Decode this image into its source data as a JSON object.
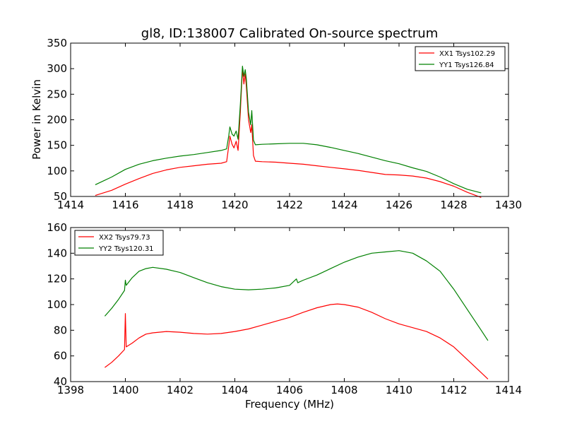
{
  "chart_data": [
    {
      "type": "line",
      "title": "gl8, ID:138007 Calibrated On-source spectrum",
      "xlabel": "",
      "ylabel": "Power in Kelvin",
      "xlim": [
        1414,
        1430
      ],
      "ylim": [
        50,
        350
      ],
      "xticks": [
        1414,
        1416,
        1418,
        1420,
        1422,
        1424,
        1426,
        1428,
        1430
      ],
      "yticks": [
        50,
        100,
        150,
        200,
        250,
        300,
        350
      ],
      "legend_position": "top-right",
      "series": [
        {
          "name": "XX1 Tsys102.29",
          "color": "#ff0000",
          "points": [
            [
              1414.9,
              52
            ],
            [
              1415.5,
              62
            ],
            [
              1416.0,
              74
            ],
            [
              1416.5,
              85
            ],
            [
              1417.0,
              95
            ],
            [
              1417.5,
              102
            ],
            [
              1418.0,
              107
            ],
            [
              1418.5,
              110
            ],
            [
              1419.0,
              113
            ],
            [
              1419.5,
              115
            ],
            [
              1419.7,
              118
            ],
            [
              1419.78,
              150
            ],
            [
              1419.82,
              168
            ],
            [
              1419.9,
              152
            ],
            [
              1419.97,
              145
            ],
            [
              1420.05,
              158
            ],
            [
              1420.12,
              140
            ],
            [
              1420.2,
              215
            ],
            [
              1420.28,
              300
            ],
            [
              1420.33,
              270
            ],
            [
              1420.38,
              290
            ],
            [
              1420.42,
              265
            ],
            [
              1420.5,
              200
            ],
            [
              1420.58,
              175
            ],
            [
              1420.62,
              190
            ],
            [
              1420.68,
              130
            ],
            [
              1420.75,
              119
            ],
            [
              1421.0,
              118
            ],
            [
              1421.5,
              117
            ],
            [
              1422.0,
              115
            ],
            [
              1422.5,
              113
            ],
            [
              1423.0,
              110
            ],
            [
              1423.5,
              107
            ],
            [
              1424.0,
              104
            ],
            [
              1424.5,
              101
            ],
            [
              1425.0,
              97
            ],
            [
              1425.5,
              93
            ],
            [
              1426.0,
              92
            ],
            [
              1426.5,
              90
            ],
            [
              1427.0,
              86
            ],
            [
              1427.5,
              79
            ],
            [
              1428.0,
              70
            ],
            [
              1428.5,
              58
            ],
            [
              1429.0,
              48
            ]
          ]
        },
        {
          "name": "YY1 Tsys126.84",
          "color": "#008000",
          "points": [
            [
              1414.9,
              73
            ],
            [
              1415.5,
              88
            ],
            [
              1416.0,
              103
            ],
            [
              1416.5,
              113
            ],
            [
              1417.0,
              120
            ],
            [
              1417.5,
              125
            ],
            [
              1418.0,
              129
            ],
            [
              1418.5,
              132
            ],
            [
              1419.0,
              136
            ],
            [
              1419.5,
              140
            ],
            [
              1419.7,
              143
            ],
            [
              1419.78,
              170
            ],
            [
              1419.82,
              186
            ],
            [
              1419.9,
              172
            ],
            [
              1419.97,
              168
            ],
            [
              1420.05,
              178
            ],
            [
              1420.12,
              162
            ],
            [
              1420.2,
              230
            ],
            [
              1420.28,
              305
            ],
            [
              1420.33,
              285
            ],
            [
              1420.38,
              298
            ],
            [
              1420.42,
              280
            ],
            [
              1420.5,
              215
            ],
            [
              1420.58,
              190
            ],
            [
              1420.62,
              218
            ],
            [
              1420.68,
              160
            ],
            [
              1420.75,
              151
            ],
            [
              1421.0,
              152
            ],
            [
              1421.5,
              153
            ],
            [
              1422.0,
              154
            ],
            [
              1422.5,
              154
            ],
            [
              1423.0,
              151
            ],
            [
              1423.5,
              146
            ],
            [
              1424.0,
              140
            ],
            [
              1424.5,
              134
            ],
            [
              1425.0,
              127
            ],
            [
              1425.5,
              120
            ],
            [
              1426.0,
              114
            ],
            [
              1426.5,
              106
            ],
            [
              1427.0,
              99
            ],
            [
              1427.5,
              88
            ],
            [
              1428.0,
              75
            ],
            [
              1428.5,
              64
            ],
            [
              1429.0,
              57
            ]
          ]
        }
      ]
    },
    {
      "type": "line",
      "title": "",
      "xlabel": "Frequency (MHz)",
      "ylabel": "",
      "xlim": [
        1398,
        1414
      ],
      "ylim": [
        40,
        160
      ],
      "xticks": [
        1398,
        1400,
        1402,
        1404,
        1406,
        1408,
        1410,
        1412,
        1414
      ],
      "yticks": [
        40,
        60,
        80,
        100,
        120,
        140,
        160
      ],
      "legend_position": "top-left",
      "series": [
        {
          "name": "XX2 Tsys79.73",
          "color": "#ff0000",
          "points": [
            [
              1399.25,
              51
            ],
            [
              1399.5,
              55
            ],
            [
              1399.75,
              60
            ],
            [
              1399.97,
              65
            ],
            [
              1400.0,
              93
            ],
            [
              1400.03,
              67
            ],
            [
              1400.25,
              70
            ],
            [
              1400.5,
              74
            ],
            [
              1400.75,
              77
            ],
            [
              1401.0,
              78
            ],
            [
              1401.5,
              79
            ],
            [
              1402.0,
              78.5
            ],
            [
              1402.5,
              77.5
            ],
            [
              1403.0,
              77
            ],
            [
              1403.5,
              77.5
            ],
            [
              1404.0,
              79
            ],
            [
              1404.5,
              81
            ],
            [
              1405.0,
              84
            ],
            [
              1405.5,
              87
            ],
            [
              1406.0,
              90
            ],
            [
              1406.5,
              94
            ],
            [
              1407.0,
              97.5
            ],
            [
              1407.5,
              100
            ],
            [
              1407.75,
              100.5
            ],
            [
              1408.0,
              100
            ],
            [
              1408.5,
              98
            ],
            [
              1409.0,
              94
            ],
            [
              1409.5,
              89
            ],
            [
              1410.0,
              85
            ],
            [
              1410.5,
              82
            ],
            [
              1411.0,
              79
            ],
            [
              1411.5,
              74
            ],
            [
              1412.0,
              67
            ],
            [
              1412.5,
              57
            ],
            [
              1413.0,
              47
            ],
            [
              1413.25,
              42
            ]
          ]
        },
        {
          "name": "YY2 Tsys120.31",
          "color": "#008000",
          "points": [
            [
              1399.25,
              91
            ],
            [
              1399.5,
              97
            ],
            [
              1399.75,
              104
            ],
            [
              1399.97,
              111
            ],
            [
              1400.0,
              119
            ],
            [
              1400.03,
              115
            ],
            [
              1400.25,
              121
            ],
            [
              1400.5,
              126
            ],
            [
              1400.75,
              128
            ],
            [
              1401.0,
              129
            ],
            [
              1401.5,
              127.5
            ],
            [
              1402.0,
              125
            ],
            [
              1402.5,
              121
            ],
            [
              1403.0,
              117
            ],
            [
              1403.5,
              114
            ],
            [
              1404.0,
              112
            ],
            [
              1404.5,
              111.5
            ],
            [
              1405.0,
              112
            ],
            [
              1405.5,
              113
            ],
            [
              1406.0,
              115
            ],
            [
              1406.25,
              120
            ],
            [
              1406.3,
              117
            ],
            [
              1406.5,
              119
            ],
            [
              1407.0,
              123
            ],
            [
              1407.5,
              128
            ],
            [
              1408.0,
              133
            ],
            [
              1408.5,
              137
            ],
            [
              1409.0,
              140
            ],
            [
              1409.5,
              141
            ],
            [
              1410.0,
              142
            ],
            [
              1410.5,
              140
            ],
            [
              1411.0,
              134
            ],
            [
              1411.5,
              126
            ],
            [
              1412.0,
              112
            ],
            [
              1412.5,
              96
            ],
            [
              1413.0,
              80
            ],
            [
              1413.25,
              72
            ]
          ]
        }
      ]
    }
  ]
}
